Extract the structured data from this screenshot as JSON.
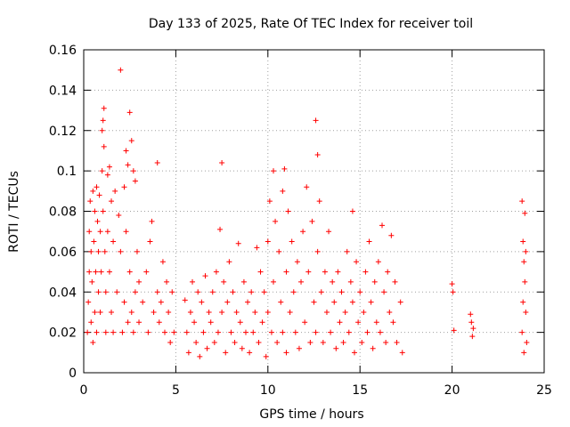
{
  "chart_data": {
    "type": "scatter",
    "title": "Day 133 of 2025, Rate Of TEC Index for receiver toil",
    "xlabel": "GPS time / hours",
    "ylabel": "ROTI / TECUs",
    "xlim": [
      0,
      25
    ],
    "ylim": [
      0,
      0.16
    ],
    "x_ticks": [
      0,
      5,
      10,
      15,
      20,
      25
    ],
    "x_tick_labels": [
      "0",
      "5",
      "10",
      "15",
      "20",
      "25"
    ],
    "y_ticks": [
      0,
      0.02,
      0.04,
      0.06,
      0.08,
      0.1,
      0.12,
      0.14,
      0.16
    ],
    "y_tick_labels": [
      "0",
      "0.02",
      "0.04",
      "0.06",
      "0.08",
      "0.1",
      "0.12",
      "0.14",
      "0.16"
    ],
    "grid": true,
    "marker": "+",
    "color": "#ff0000",
    "series": [
      {
        "values": [
          [
            0.2,
            0.02
          ],
          [
            0.25,
            0.035
          ],
          [
            0.3,
            0.05
          ],
          [
            0.3,
            0.07
          ],
          [
            0.35,
            0.085
          ],
          [
            0.4,
            0.06
          ],
          [
            0.4,
            0.025
          ],
          [
            0.45,
            0.045
          ],
          [
            0.5,
            0.09
          ],
          [
            0.5,
            0.015
          ],
          [
            0.55,
            0.065
          ],
          [
            0.6,
            0.03
          ],
          [
            0.6,
            0.08
          ],
          [
            0.65,
            0.05
          ],
          [
            0.7,
            0.092
          ],
          [
            0.7,
            0.02
          ],
          [
            0.75,
            0.075
          ],
          [
            0.8,
            0.04
          ],
          [
            0.8,
            0.06
          ],
          [
            0.85,
            0.088
          ],
          [
            0.9,
            0.03
          ],
          [
            0.9,
            0.07
          ],
          [
            0.95,
            0.05
          ],
          [
            1.0,
            0.12
          ],
          [
            1.0,
            0.1
          ],
          [
            1.05,
            0.125
          ],
          [
            1.05,
            0.08
          ],
          [
            1.1,
            0.131
          ],
          [
            1.1,
            0.112
          ],
          [
            1.15,
            0.06
          ],
          [
            1.2,
            0.04
          ],
          [
            1.2,
            0.02
          ],
          [
            1.3,
            0.098
          ],
          [
            1.3,
            0.07
          ],
          [
            1.4,
            0.102
          ],
          [
            1.4,
            0.05
          ],
          [
            1.5,
            0.085
          ],
          [
            1.5,
            0.03
          ],
          [
            1.6,
            0.065
          ],
          [
            1.6,
            0.02
          ],
          [
            1.7,
            0.09
          ],
          [
            1.8,
            0.04
          ],
          [
            1.9,
            0.078
          ],
          [
            2.0,
            0.15
          ],
          [
            2.0,
            0.06
          ],
          [
            2.1,
            0.02
          ],
          [
            2.2,
            0.092
          ],
          [
            2.2,
            0.035
          ],
          [
            2.3,
            0.11
          ],
          [
            2.3,
            0.07
          ],
          [
            2.4,
            0.103
          ],
          [
            2.4,
            0.025
          ],
          [
            2.5,
            0.129
          ],
          [
            2.5,
            0.05
          ],
          [
            2.6,
            0.115
          ],
          [
            2.6,
            0.03
          ],
          [
            2.7,
            0.1
          ],
          [
            2.7,
            0.02
          ],
          [
            2.8,
            0.095
          ],
          [
            2.8,
            0.04
          ],
          [
            2.9,
            0.06
          ],
          [
            3.0,
            0.045
          ],
          [
            3.0,
            0.025
          ],
          [
            3.2,
            0.035
          ],
          [
            3.4,
            0.05
          ],
          [
            3.5,
            0.02
          ],
          [
            3.6,
            0.065
          ],
          [
            3.7,
            0.075
          ],
          [
            3.8,
            0.03
          ],
          [
            4.0,
            0.104
          ],
          [
            4.0,
            0.04
          ],
          [
            4.1,
            0.025
          ],
          [
            4.2,
            0.035
          ],
          [
            4.3,
            0.055
          ],
          [
            4.4,
            0.02
          ],
          [
            4.5,
            0.045
          ],
          [
            4.6,
            0.03
          ],
          [
            4.7,
            0.015
          ],
          [
            4.8,
            0.04
          ],
          [
            4.9,
            0.02
          ],
          [
            5.5,
            0.036
          ],
          [
            5.6,
            0.02
          ],
          [
            5.7,
            0.01
          ],
          [
            5.8,
            0.03
          ],
          [
            5.9,
            0.045
          ],
          [
            6.0,
            0.025
          ],
          [
            6.1,
            0.015
          ],
          [
            6.2,
            0.04
          ],
          [
            6.3,
            0.008
          ],
          [
            6.4,
            0.035
          ],
          [
            6.5,
            0.02
          ],
          [
            6.6,
            0.048
          ],
          [
            6.7,
            0.012
          ],
          [
            6.8,
            0.03
          ],
          [
            6.9,
            0.025
          ],
          [
            7.0,
            0.04
          ],
          [
            7.1,
            0.015
          ],
          [
            7.2,
            0.05
          ],
          [
            7.3,
            0.02
          ],
          [
            7.4,
            0.071
          ],
          [
            7.5,
            0.104
          ],
          [
            7.5,
            0.03
          ],
          [
            7.6,
            0.045
          ],
          [
            7.7,
            0.01
          ],
          [
            7.8,
            0.035
          ],
          [
            7.9,
            0.055
          ],
          [
            8.0,
            0.02
          ],
          [
            8.1,
            0.04
          ],
          [
            8.2,
            0.015
          ],
          [
            8.3,
            0.03
          ],
          [
            8.4,
            0.064
          ],
          [
            8.5,
            0.025
          ],
          [
            8.6,
            0.012
          ],
          [
            8.7,
            0.045
          ],
          [
            8.8,
            0.02
          ],
          [
            8.9,
            0.035
          ],
          [
            9.0,
            0.01
          ],
          [
            9.1,
            0.04
          ],
          [
            9.2,
            0.02
          ],
          [
            9.3,
            0.03
          ],
          [
            9.4,
            0.062
          ],
          [
            9.5,
            0.015
          ],
          [
            9.6,
            0.05
          ],
          [
            9.7,
            0.025
          ],
          [
            9.8,
            0.04
          ],
          [
            9.9,
            0.008
          ],
          [
            10.0,
            0.065
          ],
          [
            10.0,
            0.03
          ],
          [
            10.1,
            0.085
          ],
          [
            10.2,
            0.02
          ],
          [
            10.3,
            0.1
          ],
          [
            10.3,
            0.045
          ],
          [
            10.4,
            0.075
          ],
          [
            10.5,
            0.015
          ],
          [
            10.6,
            0.06
          ],
          [
            10.7,
            0.035
          ],
          [
            10.8,
            0.09
          ],
          [
            10.8,
            0.02
          ],
          [
            10.9,
            0.101
          ],
          [
            11.0,
            0.05
          ],
          [
            11.0,
            0.01
          ],
          [
            11.1,
            0.08
          ],
          [
            11.2,
            0.03
          ],
          [
            11.3,
            0.065
          ],
          [
            11.4,
            0.04
          ],
          [
            11.5,
            0.02
          ],
          [
            11.6,
            0.055
          ],
          [
            11.7,
            0.012
          ],
          [
            11.8,
            0.045
          ],
          [
            11.9,
            0.07
          ],
          [
            12.0,
            0.025
          ],
          [
            12.1,
            0.092
          ],
          [
            12.2,
            0.05
          ],
          [
            12.3,
            0.015
          ],
          [
            12.4,
            0.075
          ],
          [
            12.5,
            0.035
          ],
          [
            12.6,
            0.125
          ],
          [
            12.6,
            0.02
          ],
          [
            12.7,
            0.108
          ],
          [
            12.7,
            0.06
          ],
          [
            12.8,
            0.085
          ],
          [
            12.9,
            0.04
          ],
          [
            13.0,
            0.015
          ],
          [
            13.1,
            0.05
          ],
          [
            13.2,
            0.03
          ],
          [
            13.3,
            0.07
          ],
          [
            13.4,
            0.02
          ],
          [
            13.5,
            0.045
          ],
          [
            13.6,
            0.035
          ],
          [
            13.7,
            0.012
          ],
          [
            13.8,
            0.05
          ],
          [
            13.9,
            0.025
          ],
          [
            14.0,
            0.04
          ],
          [
            14.1,
            0.015
          ],
          [
            14.2,
            0.03
          ],
          [
            14.3,
            0.06
          ],
          [
            14.4,
            0.02
          ],
          [
            14.5,
            0.045
          ],
          [
            14.6,
            0.08
          ],
          [
            14.6,
            0.035
          ],
          [
            14.7,
            0.01
          ],
          [
            14.8,
            0.055
          ],
          [
            14.9,
            0.025
          ],
          [
            15.0,
            0.04
          ],
          [
            15.1,
            0.015
          ],
          [
            15.2,
            0.03
          ],
          [
            15.3,
            0.05
          ],
          [
            15.4,
            0.02
          ],
          [
            15.5,
            0.065
          ],
          [
            15.6,
            0.035
          ],
          [
            15.7,
            0.012
          ],
          [
            15.8,
            0.045
          ],
          [
            15.9,
            0.025
          ],
          [
            16.0,
            0.055
          ],
          [
            16.1,
            0.02
          ],
          [
            16.2,
            0.073
          ],
          [
            16.3,
            0.04
          ],
          [
            16.4,
            0.015
          ],
          [
            16.5,
            0.05
          ],
          [
            16.6,
            0.03
          ],
          [
            16.7,
            0.068
          ],
          [
            16.8,
            0.025
          ],
          [
            16.9,
            0.045
          ],
          [
            17.0,
            0.015
          ],
          [
            17.2,
            0.035
          ],
          [
            17.3,
            0.01
          ],
          [
            20.0,
            0.044
          ],
          [
            20.05,
            0.04
          ],
          [
            20.1,
            0.021
          ],
          [
            21.0,
            0.029
          ],
          [
            21.05,
            0.025
          ],
          [
            21.1,
            0.018
          ],
          [
            21.15,
            0.022
          ],
          [
            23.8,
            0.085
          ],
          [
            23.8,
            0.02
          ],
          [
            23.85,
            0.065
          ],
          [
            23.85,
            0.035
          ],
          [
            23.9,
            0.055
          ],
          [
            23.9,
            0.01
          ],
          [
            23.95,
            0.079
          ],
          [
            23.95,
            0.045
          ],
          [
            24.0,
            0.03
          ],
          [
            24.0,
            0.06
          ],
          [
            24.05,
            0.015
          ]
        ]
      }
    ]
  }
}
